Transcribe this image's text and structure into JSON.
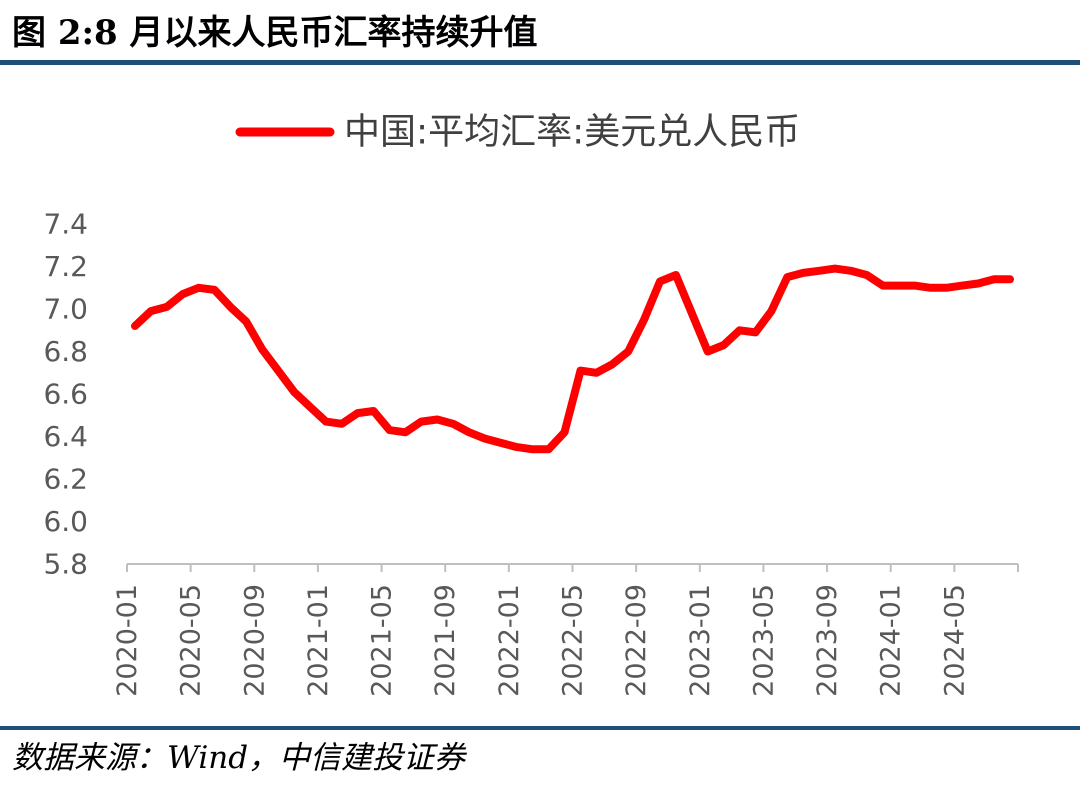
{
  "header": {
    "title": "图 2:8 月以来人民币汇率持续升值"
  },
  "footer": {
    "source": "数据来源：Wind，中信建投证券"
  },
  "colors": {
    "rule": "#1f4e79",
    "series": "#ff0000",
    "axis": "#bfbfbf",
    "tick_text": "#595959"
  },
  "chart_data": {
    "type": "line",
    "xlabel": "",
    "ylabel": "",
    "ylim": [
      5.8,
      7.4
    ],
    "yticks": [
      "7.4",
      "7.2",
      "7.0",
      "6.8",
      "6.6",
      "6.4",
      "6.2",
      "6.0",
      "5.8"
    ],
    "legend": "top-center",
    "grid": false,
    "xtick_labels": [
      "2020-01",
      "2020-05",
      "2020-09",
      "2021-01",
      "2021-05",
      "2021-09",
      "2022-01",
      "2022-05",
      "2022-09",
      "2023-01",
      "2023-05",
      "2023-09",
      "2024-01",
      "2024-05"
    ],
    "x": [
      "2020-01",
      "2020-02",
      "2020-03",
      "2020-04",
      "2020-05",
      "2020-06",
      "2020-07",
      "2020-08",
      "2020-09",
      "2020-10",
      "2020-11",
      "2020-12",
      "2021-01",
      "2021-02",
      "2021-03",
      "2021-04",
      "2021-05",
      "2021-06",
      "2021-07",
      "2021-08",
      "2021-09",
      "2021-10",
      "2021-11",
      "2021-12",
      "2022-01",
      "2022-02",
      "2022-03",
      "2022-04",
      "2022-05",
      "2022-06",
      "2022-07",
      "2022-08",
      "2022-09",
      "2022-10",
      "2022-11",
      "2022-12",
      "2023-01",
      "2023-02",
      "2023-03",
      "2023-04",
      "2023-05",
      "2023-06",
      "2023-07",
      "2023-08",
      "2023-09",
      "2023-10",
      "2023-11",
      "2023-12",
      "2024-01",
      "2024-02",
      "2024-03",
      "2024-04",
      "2024-05",
      "2024-06",
      "2024-07",
      "2024-08"
    ],
    "series": [
      {
        "name": "中国:平均汇率:美元兑人民币",
        "values": [
          6.92,
          6.99,
          7.01,
          7.07,
          7.1,
          7.09,
          7.01,
          6.94,
          6.81,
          6.71,
          6.61,
          6.54,
          6.47,
          6.46,
          6.51,
          6.52,
          6.43,
          6.42,
          6.47,
          6.48,
          6.46,
          6.42,
          6.39,
          6.37,
          6.35,
          6.34,
          6.34,
          6.42,
          6.71,
          6.7,
          6.74,
          6.8,
          6.95,
          7.13,
          7.16,
          6.98,
          6.8,
          6.83,
          6.9,
          6.89,
          6.99,
          7.15,
          7.17,
          7.18,
          7.19,
          7.18,
          7.16,
          7.11,
          7.11,
          7.11,
          7.1,
          7.1,
          7.11,
          7.12,
          7.14,
          7.14
        ]
      }
    ]
  }
}
